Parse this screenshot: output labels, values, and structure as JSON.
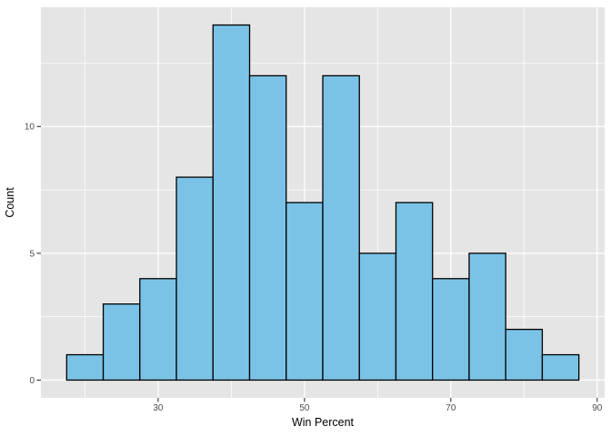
{
  "chart_data": {
    "type": "bar",
    "subtype": "histogram",
    "title": "",
    "xlabel": "Win Percent",
    "ylabel": "Count",
    "bin_width": 5,
    "bin_centers": [
      20,
      25,
      30,
      35,
      40,
      45,
      50,
      55,
      60,
      65,
      70,
      75,
      80,
      85
    ],
    "bin_edges": [
      17.5,
      22.5,
      27.5,
      32.5,
      37.5,
      42.5,
      47.5,
      52.5,
      57.5,
      62.5,
      67.5,
      72.5,
      77.5,
      82.5,
      87.5
    ],
    "counts": [
      1,
      3,
      4,
      8,
      14,
      12,
      7,
      12,
      5,
      7,
      4,
      5,
      2,
      1
    ],
    "x_ticks": [
      30,
      50,
      70,
      90
    ],
    "y_ticks": [
      0,
      5,
      10
    ],
    "x_minor_gridlines": [
      20,
      40,
      60,
      80
    ],
    "y_minor_gridlines": [
      2.5,
      7.5,
      12.5
    ],
    "xlim": [
      13.98,
      91.02
    ],
    "ylim": [
      -0.7,
      14.7
    ],
    "grid": true,
    "legend": "none",
    "style": {
      "bar_fill": "#7BC3E6",
      "bar_stroke": "#000000",
      "panel_bg": "#E5E5E5",
      "grid_major_color": "#FFFFFF",
      "grid_minor_color": "#FFFFFF",
      "tick_label_color": "#4D4D4D",
      "axis_title_color": "#000000",
      "tick_mark_color": "#333333",
      "figure_bg": "#FFFFFF"
    }
  }
}
